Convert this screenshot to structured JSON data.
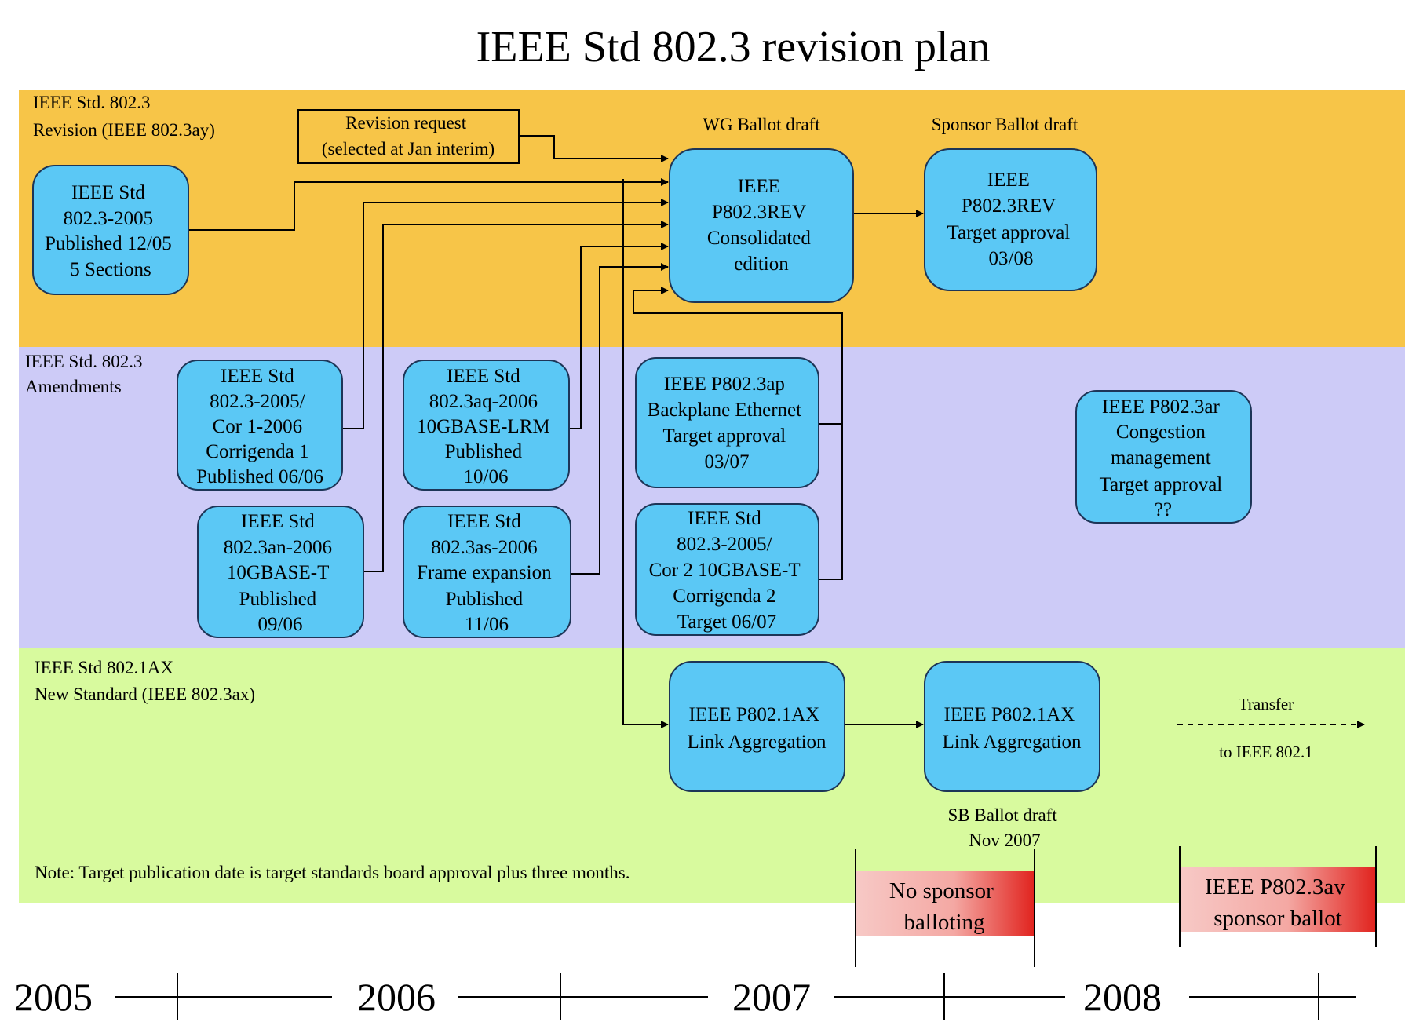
{
  "title": "IEEE Std 802.3 revision plan",
  "lanes": {
    "revision": {
      "label": [
        "IEEE Std. 802.3",
        "Revision (IEEE 802.3ay)"
      ],
      "color": "#f7c548"
    },
    "amendments": {
      "label": [
        "IEEE Std. 802.3",
        "Amendments"
      ],
      "color": "#cdcbf7"
    },
    "new_standard": {
      "label": [
        "IEEE Std 802.1AX",
        "New Standard (IEEE 802.3ax)"
      ],
      "color": "#d8fa9e"
    }
  },
  "box_color": "#5bc8f5",
  "headings": {
    "revision_request": [
      "Revision request",
      "(selected at Jan interim)"
    ],
    "wg_ballot": "WG Ballot draft",
    "sponsor_ballot": "Sponsor Ballot draft",
    "sb_ballot": [
      "SB Ballot draft",
      "Nov 2007"
    ]
  },
  "boxes": {
    "std_2005": [
      "IEEE Std",
      "802.3-2005",
      "Published 12/05",
      "5 Sections"
    ],
    "p8023rev_consolidated": [
      "IEEE",
      "P802.3REV",
      "Consolidated",
      "edition"
    ],
    "p8023rev_target": [
      "IEEE",
      "P802.3REV",
      "Target approval",
      "03/08"
    ],
    "cor1": [
      "IEEE Std",
      "802.3-2005/",
      "Cor 1-2006",
      "Corrigenda 1",
      "Published 06/06"
    ],
    "aq": [
      "IEEE Std",
      "802.3aq-2006",
      "10GBASE-LRM",
      "Published",
      "10/06"
    ],
    "ap": [
      "IEEE P802.3ap",
      "Backplane Ethernet",
      "Target approval",
      "03/07"
    ],
    "ar": [
      "IEEE P802.3ar",
      "Congestion",
      "management",
      "Target approval",
      "??"
    ],
    "an": [
      "IEEE Std",
      "802.3an-2006",
      "10GBASE-T",
      "Published",
      "09/06"
    ],
    "as": [
      "IEEE Std",
      "802.3as-2006",
      "Frame expansion",
      "Published",
      "11/06"
    ],
    "cor2": [
      "IEEE Std",
      "802.3-2005/",
      "Cor 2 10GBASE-T",
      "Corrigenda 2",
      "Target 06/07"
    ],
    "ax_wg": [
      "IEEE P802.1AX",
      "Link Aggregation"
    ],
    "ax_sb": [
      "IEEE P802.1AX",
      "Link Aggregation"
    ]
  },
  "transfer": [
    "Transfer",
    "to IEEE 802.1"
  ],
  "note": "Note: Target publication date is target standards board approval plus three months.",
  "callouts": {
    "no_sponsor": [
      "No sponsor",
      "balloting"
    ],
    "p8023av": [
      "IEEE P802.3av",
      "sponsor ballot"
    ]
  },
  "timeline": {
    "years": [
      "2005",
      "2006",
      "2007",
      "2008"
    ]
  }
}
